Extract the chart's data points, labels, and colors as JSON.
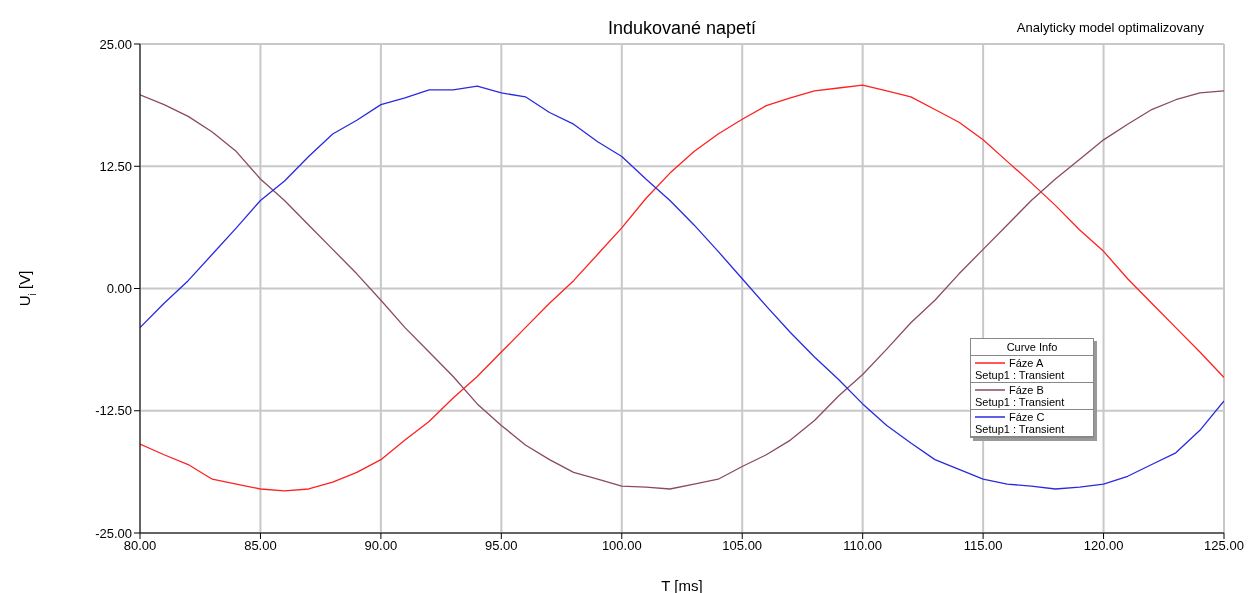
{
  "chart_data": {
    "type": "line",
    "title": "Indukované napetí",
    "xlabel": "T  [ms]",
    "ylabel": "U$_{i}$ [V]",
    "legend_title": "Curve Info",
    "annotations": [
      "Analyticky model optimalizovany"
    ],
    "x": [
      80,
      81,
      82,
      83,
      84,
      85,
      86,
      87,
      88,
      89,
      90,
      91,
      92,
      93,
      94,
      95,
      96,
      97,
      98,
      99,
      100,
      101,
      102,
      103,
      104,
      105,
      106,
      107,
      108,
      109,
      110,
      111,
      112,
      113,
      114,
      115,
      116,
      117,
      118,
      119,
      120,
      121,
      122,
      123,
      124,
      125
    ],
    "series": [
      {
        "name": "Fáze A\nSetup1 : Transient",
        "color": "#ff2020",
        "values": [
          -15.9,
          -17.0,
          -18.0,
          -19.5,
          -20.0,
          -20.5,
          -20.7,
          -20.5,
          -19.8,
          -18.8,
          -17.5,
          -15.5,
          -13.6,
          -11.2,
          -9.0,
          -6.5,
          -4.0,
          -1.5,
          0.8,
          3.5,
          6.2,
          9.2,
          11.8,
          14.0,
          15.8,
          17.3,
          18.7,
          19.5,
          20.2,
          20.5,
          20.8,
          20.2,
          19.6,
          18.3,
          17.0,
          15.2,
          13.0,
          10.8,
          8.5,
          6.0,
          3.8,
          1.0,
          -1.5,
          -4.0,
          -6.5,
          -9.1
        ]
      },
      {
        "name": "Fáze B\nSetup1 : Transient",
        "color": "#8b4a62",
        "values": [
          19.8,
          18.8,
          17.6,
          16.0,
          14.0,
          11.2,
          9.0,
          6.5,
          4.0,
          1.5,
          -1.2,
          -4.0,
          -6.5,
          -9.0,
          -11.8,
          -14.0,
          -16.0,
          -17.5,
          -18.8,
          -19.5,
          -20.2,
          -20.3,
          -20.5,
          -20.0,
          -19.5,
          -18.2,
          -17.0,
          -15.5,
          -13.5,
          -11.0,
          -8.8,
          -6.2,
          -3.5,
          -1.2,
          1.5,
          4.0,
          6.5,
          9.0,
          11.2,
          13.2,
          15.2,
          16.8,
          18.3,
          19.3,
          20.0,
          20.2
        ]
      },
      {
        "name": "Fáze C\nSetup1 : Transient",
        "color": "#2a2ae0",
        "values": [
          -4.0,
          -1.5,
          0.8,
          3.5,
          6.2,
          9.0,
          11.0,
          13.5,
          15.8,
          17.2,
          18.8,
          19.5,
          20.3,
          20.3,
          20.7,
          20.0,
          19.6,
          18.0,
          16.8,
          15.0,
          13.5,
          11.2,
          9.0,
          6.5,
          3.8,
          1.0,
          -1.8,
          -4.5,
          -7.0,
          -9.3,
          -11.8,
          -14.0,
          -15.8,
          -17.5,
          -18.5,
          -19.5,
          -20.0,
          -20.2,
          -20.5,
          -20.3,
          -20.0,
          -19.2,
          -18.0,
          -16.8,
          -14.5,
          -11.5
        ]
      }
    ],
    "xlim": [
      80,
      125
    ],
    "xticks": [
      {
        "value": 80,
        "label": "80.00"
      },
      {
        "value": 85,
        "label": "85.00"
      },
      {
        "value": 90,
        "label": "90.00"
      },
      {
        "value": 95,
        "label": "95.00"
      },
      {
        "value": 100,
        "label": "100.00"
      },
      {
        "value": 105,
        "label": "105.00"
      },
      {
        "value": 110,
        "label": "110.00"
      },
      {
        "value": 115,
        "label": "115.00"
      },
      {
        "value": 120,
        "label": "120.00"
      },
      {
        "value": 125,
        "label": "125.00"
      }
    ],
    "ylim": [
      -25,
      25
    ],
    "yticks": [
      {
        "value": -25,
        "label": "-25.00"
      },
      {
        "value": -12.5,
        "label": "-12.50"
      },
      {
        "value": 0,
        "label": "0.00"
      },
      {
        "value": 12.5,
        "label": "12.50"
      },
      {
        "value": 25,
        "label": "25.00"
      }
    ],
    "grid": true,
    "legend": "right",
    "marker": "none",
    "line_style": "solid"
  }
}
